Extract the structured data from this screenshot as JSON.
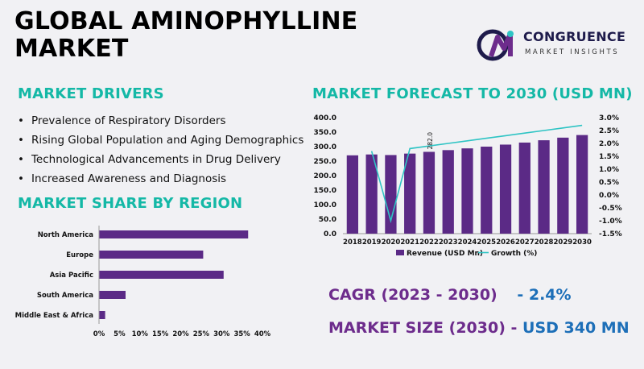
{
  "title": [
    "GLOBAL AMINOPHYLLINE",
    "MARKET"
  ],
  "logo": {
    "name": "CONGRUENCE",
    "tagline": "MARKET INSIGHTS",
    "mark": "CM"
  },
  "drivers": {
    "heading": "MARKET DRIVERS",
    "items": [
      "Prevalence of Respiratory Disorders",
      "Rising Global Population and Aging Demographics",
      "Technological Advancements in Drug Delivery",
      "Increased Awareness and Diagnosis"
    ]
  },
  "share": {
    "heading": "MARKET SHARE BY REGION"
  },
  "forecast": {
    "heading": "MARKET FORECAST TO 2030 (USD MN)"
  },
  "kpis": {
    "cagr_label": "CAGR (2023 - 2030)",
    "cagr_value": "- 2.4%",
    "size_label": "MARKET SIZE (2030) -",
    "size_value": "USD 340 MN"
  },
  "colors": {
    "bar": "#5b2a86",
    "line": "#2ec4c4",
    "accent": "#14b8a6"
  },
  "chart_data": [
    {
      "type": "bar",
      "orientation": "horizontal",
      "categories": [
        "North America",
        "Europe",
        "Asia Pacific",
        "South America",
        "Middle East & Africa"
      ],
      "values": [
        36.5,
        25.5,
        30.5,
        6.5,
        1.5
      ],
      "xlim": [
        0,
        40
      ],
      "xticks": [
        "0%",
        "5%",
        "10%",
        "15%",
        "20%",
        "25%",
        "30%",
        "35%",
        "40%"
      ],
      "grid": false
    },
    {
      "type": "bar",
      "categories": [
        "2018",
        "2019",
        "2020",
        "2021",
        "2022",
        "2023",
        "2024",
        "2025",
        "2026",
        "2027",
        "2028",
        "2029",
        "2030"
      ],
      "series": [
        {
          "name": "Revenue (USD Mn)",
          "type": "bar",
          "axis": "left",
          "values": [
            270,
            273,
            271,
            276,
            282,
            288,
            294,
            300,
            307,
            314,
            322,
            331,
            340
          ]
        },
        {
          "name": "Growth (%)",
          "type": "line",
          "axis": "right",
          "values": [
            null,
            1.7,
            -1.0,
            1.8,
            1.9,
            2.0,
            2.1,
            2.2,
            2.3,
            2.4,
            2.5,
            2.6,
            2.7
          ]
        }
      ],
      "data_labels": [
        {
          "category": "2022",
          "text": "282.0"
        }
      ],
      "ylim_left": [
        0,
        400
      ],
      "yticks_left": [
        "0.0",
        "50.0",
        "100.0",
        "150.0",
        "200.0",
        "250.0",
        "300.0",
        "350.0",
        "400.0"
      ],
      "ylim_right": [
        -1.5,
        3.0
      ],
      "yticks_right": [
        "-1.5%",
        "-1.0%",
        "-0.5%",
        "0.0%",
        "0.5%",
        "1.0%",
        "1.5%",
        "2.0%",
        "2.5%",
        "3.0%"
      ],
      "legend": "bottom",
      "grid": false
    }
  ]
}
